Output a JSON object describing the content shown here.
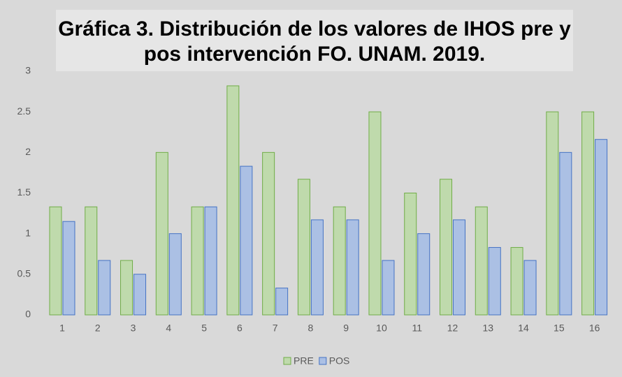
{
  "chart_data": {
    "type": "bar",
    "title": "Gráfica 3. Distribución de los valores de IHOS pre y pos intervención FO. UNAM. 2019.",
    "categories": [
      "1",
      "2",
      "3",
      "4",
      "5",
      "6",
      "7",
      "8",
      "9",
      "10",
      "11",
      "12",
      "13",
      "14",
      "15",
      "16"
    ],
    "series": [
      {
        "name": "PRE",
        "color": "#70ad47",
        "values": [
          1.33,
          1.33,
          0.67,
          2,
          1.33,
          2.82,
          2,
          1.67,
          1.33,
          2.5,
          1.5,
          1.67,
          1.33,
          0.83,
          2.5,
          2.5
        ]
      },
      {
        "name": "POS",
        "color": "#4472c4",
        "values": [
          1.15,
          0.67,
          0.5,
          1,
          1.33,
          1.83,
          0.33,
          1.17,
          1.17,
          0.67,
          1,
          1.17,
          0.83,
          0.67,
          2,
          2.16
        ]
      }
    ],
    "ylim": [
      0,
      3
    ],
    "yticks": [
      0,
      0.5,
      1,
      1.5,
      2,
      2.5,
      3
    ],
    "grid": false,
    "legend": "bottom"
  }
}
